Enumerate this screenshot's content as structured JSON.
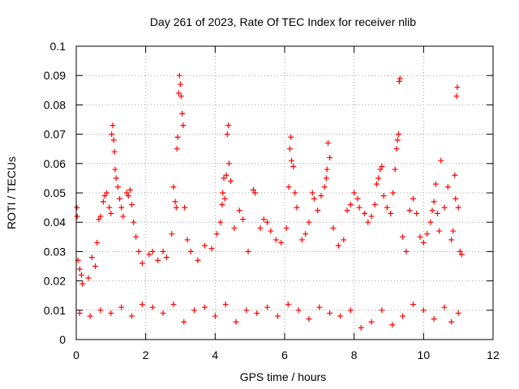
{
  "chart_data": {
    "type": "scatter",
    "title": "Day 261 of 2023, Rate Of TEC Index for receiver nlib",
    "xlabel": "GPS time / hours",
    "ylabel": "ROTI / TECUs",
    "xlim": [
      0,
      12
    ],
    "ylim": [
      0,
      0.1
    ],
    "xticks": [
      "0",
      "2",
      "4",
      "6",
      "8",
      "10",
      "12"
    ],
    "yticks": [
      "0",
      "0.01",
      "0.02",
      "0.03",
      "0.04",
      "0.05",
      "0.06",
      "0.07",
      "0.08",
      "0.09",
      "0.1"
    ],
    "grid": true,
    "marker": "+",
    "colors": {
      "points": "#ff0000",
      "grid": "#a0a0a0",
      "axes": "#000000"
    },
    "series": [
      {
        "name": "ROTI",
        "points": [
          [
            0.02,
            0.045
          ],
          [
            0.03,
            0.042
          ],
          [
            0.05,
            0.027
          ],
          [
            0.1,
            0.024
          ],
          [
            0.15,
            0.022
          ],
          [
            0.18,
            0.019
          ],
          [
            0.35,
            0.021
          ],
          [
            0.45,
            0.028
          ],
          [
            0.55,
            0.025
          ],
          [
            0.6,
            0.033
          ],
          [
            0.65,
            0.041
          ],
          [
            0.7,
            0.042
          ],
          [
            0.78,
            0.047
          ],
          [
            0.82,
            0.049
          ],
          [
            0.88,
            0.05
          ],
          [
            0.95,
            0.045
          ],
          [
            1.0,
            0.043
          ],
          [
            1.02,
            0.07
          ],
          [
            1.05,
            0.073
          ],
          [
            1.08,
            0.068
          ],
          [
            1.1,
            0.064
          ],
          [
            1.12,
            0.058
          ],
          [
            1.15,
            0.055
          ],
          [
            1.2,
            0.052
          ],
          [
            1.25,
            0.048
          ],
          [
            1.3,
            0.045
          ],
          [
            1.35,
            0.042
          ],
          [
            1.45,
            0.05
          ],
          [
            1.5,
            0.049
          ],
          [
            1.55,
            0.051
          ],
          [
            1.6,
            0.046
          ],
          [
            1.65,
            0.04
          ],
          [
            1.72,
            0.035
          ],
          [
            1.8,
            0.03
          ],
          [
            1.9,
            0.026
          ],
          [
            2.1,
            0.029
          ],
          [
            2.2,
            0.03
          ],
          [
            2.35,
            0.027
          ],
          [
            2.5,
            0.03
          ],
          [
            2.6,
            0.028
          ],
          [
            2.75,
            0.036
          ],
          [
            2.8,
            0.052
          ],
          [
            2.85,
            0.047
          ],
          [
            2.88,
            0.045
          ],
          [
            2.9,
            0.065
          ],
          [
            2.92,
            0.069
          ],
          [
            2.95,
            0.084
          ],
          [
            2.97,
            0.09
          ],
          [
            3.0,
            0.087
          ],
          [
            3.02,
            0.083
          ],
          [
            3.05,
            0.077
          ],
          [
            3.08,
            0.073
          ],
          [
            3.12,
            0.045
          ],
          [
            3.2,
            0.034
          ],
          [
            3.3,
            0.03
          ],
          [
            3.5,
            0.027
          ],
          [
            3.7,
            0.032
          ],
          [
            3.9,
            0.031
          ],
          [
            4.05,
            0.036
          ],
          [
            4.15,
            0.04
          ],
          [
            4.2,
            0.046
          ],
          [
            4.22,
            0.05
          ],
          [
            4.25,
            0.055
          ],
          [
            4.28,
            0.048
          ],
          [
            4.32,
            0.056
          ],
          [
            4.35,
            0.07
          ],
          [
            4.38,
            0.073
          ],
          [
            4.4,
            0.06
          ],
          [
            4.45,
            0.054
          ],
          [
            4.55,
            0.038
          ],
          [
            4.7,
            0.044
          ],
          [
            4.8,
            0.041
          ],
          [
            4.95,
            0.03
          ],
          [
            5.1,
            0.051
          ],
          [
            5.15,
            0.05
          ],
          [
            5.3,
            0.038
          ],
          [
            5.4,
            0.041
          ],
          [
            5.5,
            0.04
          ],
          [
            5.6,
            0.037
          ],
          [
            5.75,
            0.034
          ],
          [
            5.9,
            0.033
          ],
          [
            6.05,
            0.038
          ],
          [
            6.12,
            0.052
          ],
          [
            6.15,
            0.065
          ],
          [
            6.18,
            0.069
          ],
          [
            6.2,
            0.061
          ],
          [
            6.25,
            0.059
          ],
          [
            6.3,
            0.05
          ],
          [
            6.35,
            0.045
          ],
          [
            6.5,
            0.034
          ],
          [
            6.6,
            0.036
          ],
          [
            6.7,
            0.04
          ],
          [
            6.8,
            0.05
          ],
          [
            6.85,
            0.048
          ],
          [
            6.95,
            0.044
          ],
          [
            7.05,
            0.049
          ],
          [
            7.15,
            0.052
          ],
          [
            7.2,
            0.055
          ],
          [
            7.22,
            0.058
          ],
          [
            7.25,
            0.067
          ],
          [
            7.3,
            0.062
          ],
          [
            7.4,
            0.038
          ],
          [
            7.55,
            0.032
          ],
          [
            7.7,
            0.034
          ],
          [
            7.8,
            0.044
          ],
          [
            7.9,
            0.046
          ],
          [
            8.0,
            0.05
          ],
          [
            8.1,
            0.048
          ],
          [
            8.15,
            0.045
          ],
          [
            8.3,
            0.043
          ],
          [
            8.4,
            0.04
          ],
          [
            8.5,
            0.042
          ],
          [
            8.6,
            0.046
          ],
          [
            8.65,
            0.053
          ],
          [
            8.7,
            0.055
          ],
          [
            8.75,
            0.058
          ],
          [
            8.8,
            0.059
          ],
          [
            8.85,
            0.049
          ],
          [
            8.95,
            0.045
          ],
          [
            9.05,
            0.043
          ],
          [
            9.12,
            0.05
          ],
          [
            9.18,
            0.058
          ],
          [
            9.22,
            0.065
          ],
          [
            9.25,
            0.068
          ],
          [
            9.28,
            0.07
          ],
          [
            9.3,
            0.088
          ],
          [
            9.32,
            0.089
          ],
          [
            9.4,
            0.035
          ],
          [
            9.5,
            0.03
          ],
          [
            9.6,
            0.044
          ],
          [
            9.7,
            0.048
          ],
          [
            9.8,
            0.043
          ],
          [
            9.9,
            0.035
          ],
          [
            10.0,
            0.033
          ],
          [
            10.1,
            0.036
          ],
          [
            10.2,
            0.04
          ],
          [
            10.25,
            0.044
          ],
          [
            10.3,
            0.047
          ],
          [
            10.35,
            0.053
          ],
          [
            10.4,
            0.043
          ],
          [
            10.45,
            0.037
          ],
          [
            10.5,
            0.061
          ],
          [
            10.6,
            0.045
          ],
          [
            10.7,
            0.052
          ],
          [
            10.8,
            0.034
          ],
          [
            10.85,
            0.037
          ],
          [
            10.9,
            0.056
          ],
          [
            10.92,
            0.048
          ],
          [
            10.95,
            0.083
          ],
          [
            10.97,
            0.086
          ],
          [
            11.0,
            0.045
          ],
          [
            11.05,
            0.03
          ],
          [
            11.1,
            0.029
          ],
          [
            0.1,
            0.009
          ],
          [
            0.4,
            0.008
          ],
          [
            0.7,
            0.01
          ],
          [
            1.0,
            0.009
          ],
          [
            1.3,
            0.011
          ],
          [
            1.6,
            0.008
          ],
          [
            1.9,
            0.012
          ],
          [
            2.2,
            0.011
          ],
          [
            2.5,
            0.009
          ],
          [
            2.8,
            0.012
          ],
          [
            3.1,
            0.006
          ],
          [
            3.4,
            0.01
          ],
          [
            3.7,
            0.011
          ],
          [
            4.0,
            0.008
          ],
          [
            4.3,
            0.012
          ],
          [
            4.6,
            0.006
          ],
          [
            4.9,
            0.01
          ],
          [
            5.2,
            0.009
          ],
          [
            5.5,
            0.011
          ],
          [
            5.8,
            0.008
          ],
          [
            6.1,
            0.012
          ],
          [
            6.4,
            0.01
          ],
          [
            6.7,
            0.007
          ],
          [
            7.0,
            0.011
          ],
          [
            7.3,
            0.009
          ],
          [
            7.6,
            0.008
          ],
          [
            7.9,
            0.01
          ],
          [
            8.2,
            0.004
          ],
          [
            8.5,
            0.006
          ],
          [
            8.8,
            0.01
          ],
          [
            9.1,
            0.005
          ],
          [
            9.4,
            0.008
          ],
          [
            9.7,
            0.012
          ],
          [
            10.0,
            0.01
          ],
          [
            10.3,
            0.007
          ],
          [
            10.6,
            0.011
          ],
          [
            10.8,
            0.006
          ],
          [
            11.0,
            0.009
          ]
        ]
      }
    ]
  }
}
